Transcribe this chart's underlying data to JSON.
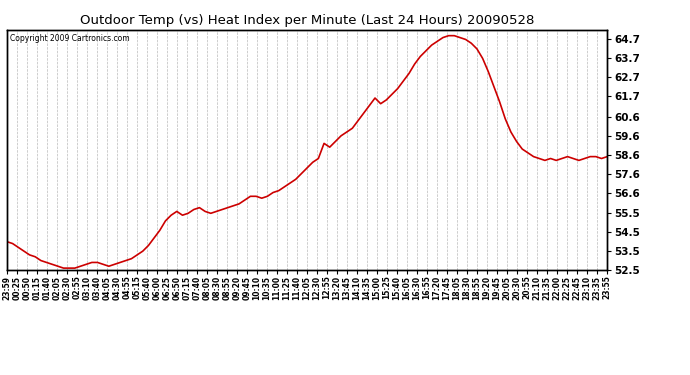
{
  "title": "Outdoor Temp (vs) Heat Index per Minute (Last 24 Hours) 20090528",
  "copyright": "Copyright 2009 Cartronics.com",
  "line_color": "#cc0000",
  "line_width": 1.2,
  "background_color": "#ffffff",
  "grid_color": "#bbbbbb",
  "yticks": [
    52.5,
    53.5,
    54.5,
    55.5,
    56.6,
    57.6,
    58.6,
    59.6,
    60.6,
    61.7,
    62.7,
    63.7,
    64.7
  ],
  "xtick_labels": [
    "23:59",
    "00:25",
    "00:50",
    "01:15",
    "01:40",
    "02:05",
    "02:30",
    "02:55",
    "03:10",
    "03:40",
    "04:05",
    "04:30",
    "04:55",
    "05:15",
    "05:40",
    "06:00",
    "06:25",
    "06:50",
    "07:15",
    "07:40",
    "08:05",
    "08:30",
    "08:55",
    "09:20",
    "09:45",
    "10:10",
    "10:35",
    "11:00",
    "11:25",
    "11:40",
    "12:05",
    "12:30",
    "12:55",
    "13:20",
    "13:45",
    "14:10",
    "14:35",
    "15:00",
    "15:25",
    "15:40",
    "16:05",
    "16:30",
    "16:55",
    "17:20",
    "17:45",
    "18:05",
    "18:30",
    "18:55",
    "19:20",
    "19:45",
    "20:05",
    "20:30",
    "20:55",
    "21:10",
    "21:35",
    "22:00",
    "22:25",
    "22:45",
    "23:10",
    "23:35",
    "23:55"
  ],
  "ymin": 52.5,
  "ymax": 65.2,
  "data_y": [
    54.0,
    53.9,
    53.7,
    53.5,
    53.3,
    53.2,
    53.0,
    52.9,
    52.8,
    52.7,
    52.6,
    52.6,
    52.6,
    52.7,
    52.8,
    52.9,
    52.9,
    52.8,
    52.7,
    52.8,
    52.9,
    53.0,
    53.1,
    53.3,
    53.5,
    53.8,
    54.2,
    54.6,
    55.1,
    55.4,
    55.6,
    55.4,
    55.5,
    55.7,
    55.8,
    55.6,
    55.5,
    55.6,
    55.7,
    55.8,
    55.9,
    56.0,
    56.2,
    56.4,
    56.4,
    56.3,
    56.4,
    56.6,
    56.7,
    56.9,
    57.1,
    57.3,
    57.6,
    57.9,
    58.2,
    58.4,
    59.2,
    59.0,
    59.3,
    59.6,
    59.8,
    60.0,
    60.4,
    60.8,
    61.2,
    61.6,
    61.3,
    61.5,
    61.8,
    62.1,
    62.5,
    62.9,
    63.4,
    63.8,
    64.1,
    64.4,
    64.6,
    64.8,
    64.9,
    64.9,
    64.8,
    64.7,
    64.5,
    64.2,
    63.7,
    63.0,
    62.2,
    61.4,
    60.5,
    59.8,
    59.3,
    58.9,
    58.7,
    58.5,
    58.4,
    58.3,
    58.4,
    58.3,
    58.4,
    58.5,
    58.4,
    58.3,
    58.4,
    58.5,
    58.5,
    58.4,
    58.5
  ]
}
